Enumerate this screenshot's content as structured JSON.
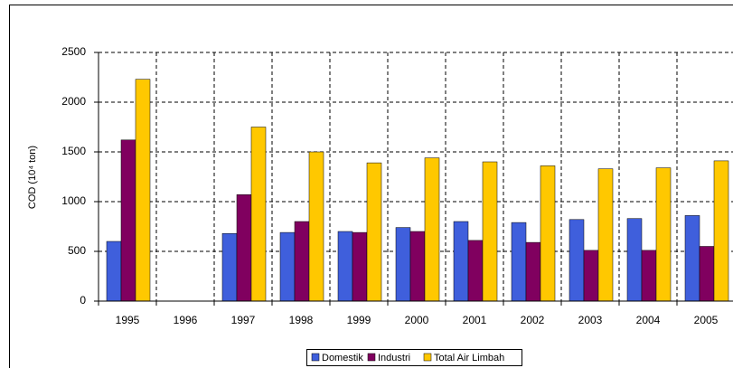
{
  "chart_data": {
    "type": "bar",
    "y_label": "COD (10⁴ ton)",
    "categories": [
      "1995",
      "1996",
      "1997",
      "1998",
      "1999",
      "2000",
      "2001",
      "2002",
      "2003",
      "2004",
      "2005"
    ],
    "series": [
      {
        "name": "Domestik",
        "color": "#3f5fdc",
        "values": [
          600,
          null,
          680,
          690,
          700,
          740,
          800,
          790,
          820,
          830,
          860
        ]
      },
      {
        "name": "Industri",
        "color": "#80005f",
        "values": [
          1620,
          null,
          1070,
          800,
          690,
          700,
          610,
          590,
          510,
          510,
          550
        ]
      },
      {
        "name": "Total Air Limbah",
        "color": "#ffc800",
        "values": [
          2230,
          null,
          1750,
          1500,
          1390,
          1440,
          1400,
          1360,
          1330,
          1340,
          1410
        ]
      }
    ],
    "ylim": [
      0,
      2500
    ],
    "yticks": [
      0,
      500,
      1000,
      1500,
      2000,
      2500
    ],
    "grid": true,
    "legend": "bottom"
  }
}
